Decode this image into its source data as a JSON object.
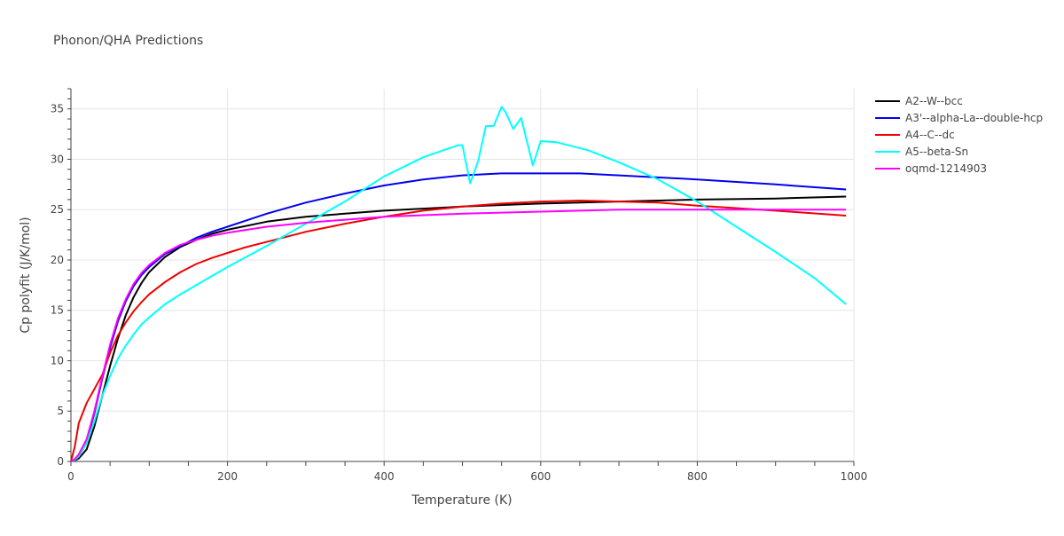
{
  "chart_data": {
    "type": "line",
    "title": "Phonon/QHA Predictions",
    "xlabel": "Temperature (K)",
    "ylabel": "Cp polyfit (J/K/mol)",
    "xlim": [
      0,
      1000
    ],
    "ylim": [
      0,
      37
    ],
    "xticks": [
      0,
      200,
      400,
      600,
      800,
      1000
    ],
    "yticks": [
      0,
      5,
      10,
      15,
      20,
      25,
      30,
      35
    ],
    "grid": true,
    "legend_position": "top-right",
    "series": [
      {
        "name": "A2--W--bcc",
        "color": "#000000",
        "x": [
          0,
          5,
          10,
          20,
          30,
          40,
          50,
          60,
          70,
          80,
          90,
          100,
          120,
          140,
          160,
          180,
          200,
          250,
          300,
          350,
          400,
          500,
          600,
          700,
          800,
          900,
          990
        ],
        "y": [
          0,
          0.1,
          0.3,
          1.2,
          3.5,
          6.5,
          9.5,
          12.2,
          14.5,
          16.3,
          17.7,
          18.8,
          20.3,
          21.3,
          22.0,
          22.6,
          23.0,
          23.8,
          24.3,
          24.6,
          24.9,
          25.3,
          25.6,
          25.8,
          26.0,
          26.1,
          26.3
        ]
      },
      {
        "name": "A3'--alpha-La--double-hcp",
        "color": "#0000ee",
        "x": [
          0,
          5,
          10,
          20,
          30,
          40,
          50,
          60,
          70,
          80,
          90,
          100,
          120,
          140,
          160,
          180,
          200,
          250,
          300,
          350,
          400,
          450,
          500,
          550,
          600,
          650,
          700,
          800,
          900,
          990
        ],
        "y": [
          0,
          0.2,
          0.6,
          2.0,
          4.8,
          8.2,
          11.3,
          13.9,
          15.9,
          17.4,
          18.5,
          19.3,
          20.6,
          21.4,
          22.2,
          22.8,
          23.3,
          24.6,
          25.7,
          26.6,
          27.4,
          28.0,
          28.4,
          28.6,
          28.6,
          28.6,
          28.4,
          28.0,
          27.5,
          27.0
        ]
      },
      {
        "name": "A4--C--dc",
        "color": "#ee0000",
        "x": [
          0,
          5,
          10,
          20,
          30,
          40,
          50,
          60,
          70,
          80,
          90,
          100,
          120,
          140,
          160,
          180,
          200,
          220,
          240,
          260,
          300,
          350,
          400,
          450,
          500,
          550,
          600,
          650,
          700,
          750,
          800,
          900,
          990
        ],
        "y": [
          0,
          1.5,
          3.8,
          5.8,
          7.2,
          8.6,
          10.8,
          12.5,
          13.8,
          14.9,
          15.8,
          16.6,
          17.8,
          18.8,
          19.6,
          20.2,
          20.7,
          21.2,
          21.6,
          22.0,
          22.8,
          23.6,
          24.3,
          24.9,
          25.3,
          25.6,
          25.8,
          25.9,
          25.8,
          25.7,
          25.4,
          24.9,
          24.4
        ]
      },
      {
        "name": "A5--beta-Sn",
        "color": "#00ffff",
        "x": [
          0,
          5,
          10,
          20,
          30,
          40,
          50,
          60,
          70,
          80,
          90,
          100,
          120,
          140,
          160,
          180,
          200,
          250,
          300,
          350,
          400,
          450,
          480,
          495,
          500,
          510,
          520,
          530,
          540,
          550,
          555,
          565,
          575,
          590,
          600,
          620,
          660,
          700,
          750,
          800,
          850,
          900,
          950,
          990
        ],
        "y": [
          0,
          0.15,
          0.5,
          1.8,
          4.0,
          6.5,
          8.5,
          10.2,
          11.5,
          12.6,
          13.6,
          14.3,
          15.6,
          16.6,
          17.5,
          18.4,
          19.3,
          21.4,
          23.6,
          25.8,
          28.3,
          30.2,
          31.0,
          31.4,
          31.4,
          27.6,
          29.8,
          33.3,
          33.3,
          35.2,
          34.7,
          33.0,
          34.1,
          29.4,
          31.8,
          31.7,
          30.9,
          29.7,
          28.0,
          25.8,
          23.3,
          20.8,
          18.2,
          15.6
        ]
      },
      {
        "name": "oqmd-1214903",
        "color": "#ff00ff",
        "x": [
          0,
          5,
          10,
          20,
          30,
          40,
          50,
          60,
          70,
          80,
          90,
          100,
          120,
          140,
          160,
          180,
          200,
          250,
          300,
          350,
          400,
          500,
          600,
          700,
          800,
          900,
          990
        ],
        "y": [
          0,
          0.25,
          0.7,
          2.2,
          5.0,
          8.4,
          11.6,
          14.2,
          16.1,
          17.6,
          18.7,
          19.5,
          20.7,
          21.5,
          22.0,
          22.4,
          22.7,
          23.3,
          23.7,
          24.0,
          24.3,
          24.6,
          24.8,
          25.0,
          25.0,
          25.0,
          25.0
        ]
      }
    ]
  }
}
